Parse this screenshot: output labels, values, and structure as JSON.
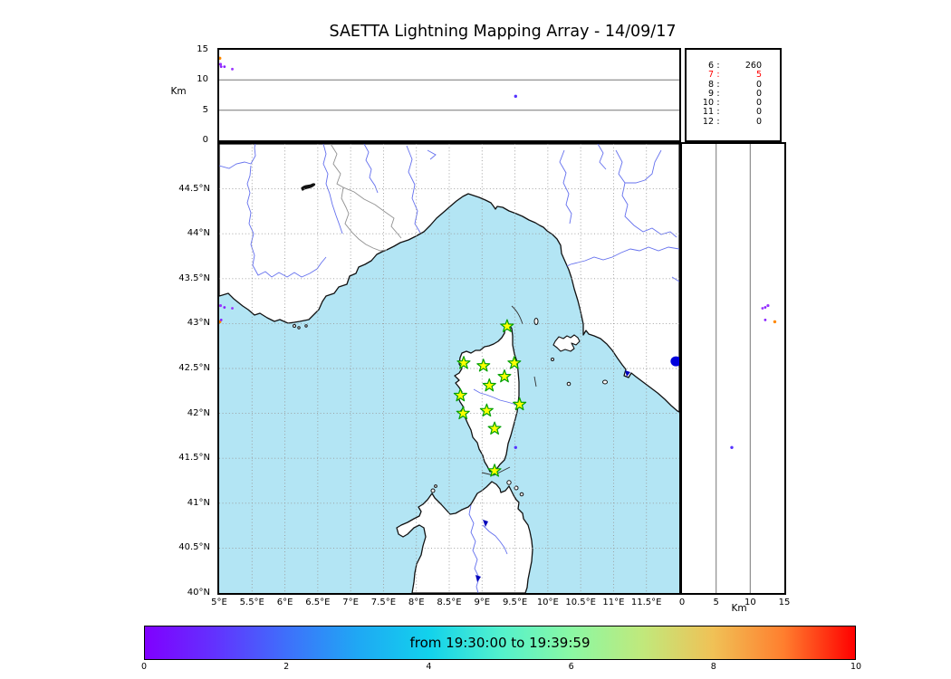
{
  "title": "SAETTA Lightning Mapping Array - 14/09/17",
  "top_panel": {
    "ylabel": "Km",
    "yticks": [
      "15",
      "10",
      "5",
      "0"
    ],
    "ytick_values": [
      15,
      10,
      5,
      0
    ]
  },
  "alt_table": {
    "rows": [
      {
        "level": "6",
        "count": "260",
        "highlight": false
      },
      {
        "level": "7",
        "count": "5",
        "highlight": true
      },
      {
        "level": "8",
        "count": "0",
        "highlight": false
      },
      {
        "level": "9",
        "count": "0",
        "highlight": false
      },
      {
        "level": "10",
        "count": "0",
        "highlight": false
      },
      {
        "level": "11",
        "count": "0",
        "highlight": false
      },
      {
        "level": "12",
        "count": "0",
        "highlight": false
      }
    ]
  },
  "map_panel": {
    "lat_ticks": [
      "44.5°N",
      "44°N",
      "43.5°N",
      "43°N",
      "42.5°N",
      "42°N",
      "41.5°N",
      "41°N",
      "40.5°N",
      "40°N"
    ],
    "lon_ticks": [
      "5°E",
      "5.5°E",
      "6°E",
      "6.5°E",
      "7°E",
      "7.5°E",
      "8°E",
      "8.5°E",
      "9°E",
      "9.5°E",
      "10°E",
      "10.5°E",
      "11°E",
      "11.5°E"
    ]
  },
  "right_panel": {
    "xlabel": "Km",
    "xticks": [
      "0",
      "5",
      "10",
      "15"
    ],
    "xtick_values": [
      0,
      5,
      10,
      15
    ]
  },
  "colorbar": {
    "label": "from 19:30:00 to 19:39:59",
    "ticks": [
      "0",
      "2",
      "4",
      "6",
      "8",
      "10"
    ],
    "tick_values": [
      0,
      2,
      4,
      6,
      8,
      10
    ]
  },
  "chart_data": {
    "type": "scatter",
    "title": "SAETTA Lightning Mapping Array - 14/09/17",
    "map_extent": {
      "lon": [
        5,
        12
      ],
      "lat": [
        40,
        45
      ]
    },
    "altitude_range_km": [
      0,
      15
    ],
    "colorbar": {
      "label": "from 19:30:00 to 19:39:59",
      "range": [
        0,
        10
      ]
    },
    "source_count_by_altitude_km": {
      "6": 260,
      "7": 5,
      "8": 0,
      "9": 0,
      "10": 0,
      "11": 0,
      "12": 0
    },
    "highlighted_altitude_km": "7",
    "station_markers_lonlat": [
      [
        9.38,
        42.97
      ],
      [
        8.72,
        42.56
      ],
      [
        9.02,
        42.53
      ],
      [
        9.49,
        42.56
      ],
      [
        9.34,
        42.41
      ],
      [
        9.11,
        42.31
      ],
      [
        8.67,
        42.2
      ],
      [
        9.57,
        42.1
      ],
      [
        9.07,
        42.03
      ],
      [
        8.71,
        42.0
      ],
      [
        9.19,
        41.83
      ],
      [
        9.19,
        41.36
      ]
    ],
    "sources": [
      {
        "lon": 5.01,
        "lat": 43.02,
        "alt": 13.6,
        "color": "#ff8800",
        "r": 1.7
      },
      {
        "lon": 5.02,
        "lat": 43.2,
        "alt": 12.6,
        "color": "#9933ff",
        "r": 1.6
      },
      {
        "lon": 5.08,
        "lat": 43.18,
        "alt": 12.2,
        "color": "#8822ff",
        "r": 1.4
      },
      {
        "lon": 5.2,
        "lat": 43.17,
        "alt": 11.8,
        "color": "#9933ff",
        "r": 1.4
      },
      {
        "lon": 5.03,
        "lat": 43.04,
        "alt": 12.2,
        "color": "#8822ff",
        "r": 1.4
      },
      {
        "lon": 9.51,
        "lat": 41.62,
        "alt": 7.3,
        "color": "#5533ff",
        "r": 1.7
      },
      {
        "lon": 11.95,
        "lat": 42.58,
        "alt": 0.3,
        "color": "#0000dd",
        "r": 6.0,
        "ry": 5.5,
        "map_only": true
      }
    ]
  }
}
